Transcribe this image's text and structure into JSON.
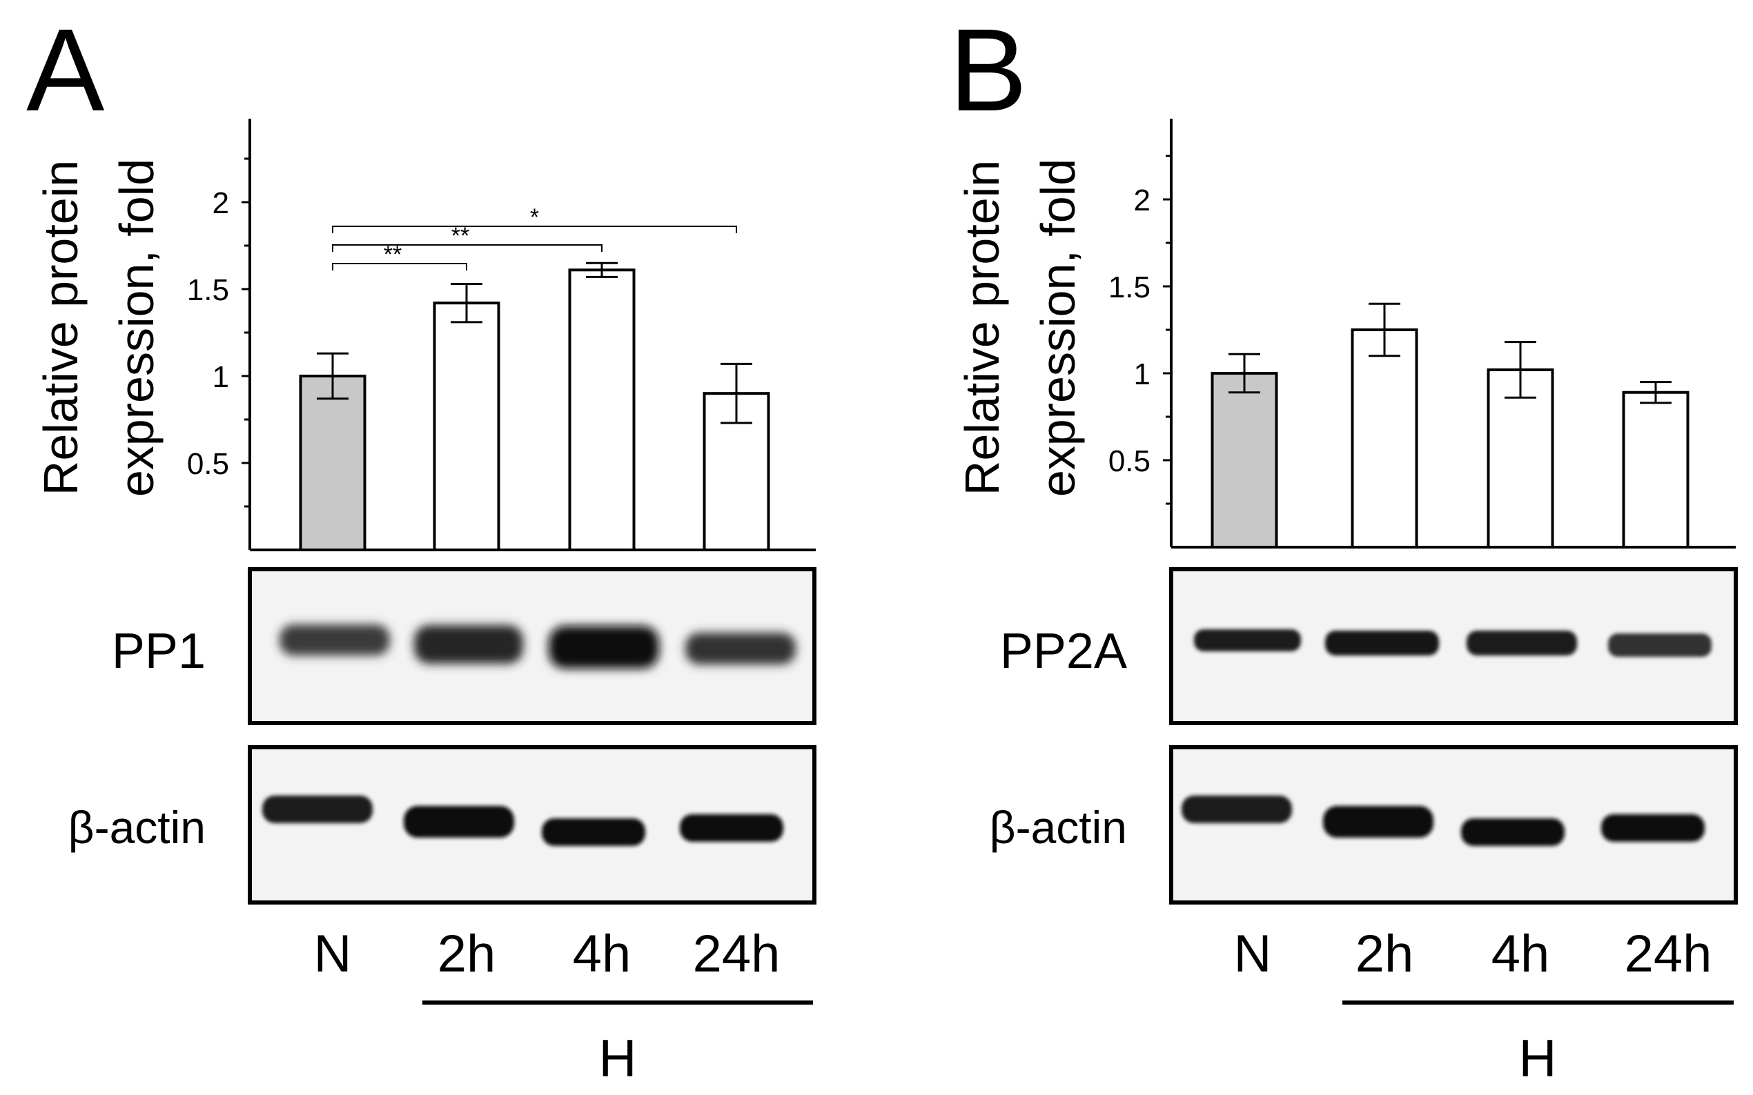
{
  "figure": {
    "panel_letters": [
      "A",
      "B"
    ],
    "group_label": "H"
  },
  "chart_data": [
    {
      "type": "bar",
      "panel": "A",
      "ylabel_line1": "Relative protein",
      "ylabel_line2": "expression, fold",
      "categories": [
        "N",
        "2h",
        "4h",
        "24h"
      ],
      "values": [
        1.0,
        1.42,
        1.61,
        0.9
      ],
      "errors": [
        0.13,
        0.11,
        0.04,
        0.17
      ],
      "bar_colors": [
        "#c8c8c8",
        "#ffffff",
        "#ffffff",
        "#ffffff"
      ],
      "ylim": [
        0,
        2.45
      ],
      "yticks": [
        0.5,
        1,
        1.5,
        2
      ],
      "ytick_labels": [
        "0.5",
        "1",
        "1.5",
        "2"
      ],
      "significance": [
        {
          "from": 0,
          "to": 1,
          "label": "**"
        },
        {
          "from": 0,
          "to": 2,
          "label": "**"
        },
        {
          "from": 0,
          "to": 3,
          "label": "*"
        }
      ],
      "blots": [
        "PP1",
        "β-actin"
      ]
    },
    {
      "type": "bar",
      "panel": "B",
      "ylabel_line1": "Relative protein",
      "ylabel_line2": "expression, fold",
      "categories": [
        "N",
        "2h",
        "4h",
        "24h"
      ],
      "values": [
        1.0,
        1.25,
        1.02,
        0.89
      ],
      "errors": [
        0.11,
        0.15,
        0.16,
        0.06
      ],
      "bar_colors": [
        "#c8c8c8",
        "#ffffff",
        "#ffffff",
        "#ffffff"
      ],
      "ylim": [
        0,
        2.45
      ],
      "yticks": [
        0.5,
        1,
        1.5,
        2
      ],
      "ytick_labels": [
        "0.5",
        "1",
        "1.5",
        "2"
      ],
      "significance": [],
      "blots": [
        "PP2A",
        "β-actin"
      ]
    }
  ]
}
